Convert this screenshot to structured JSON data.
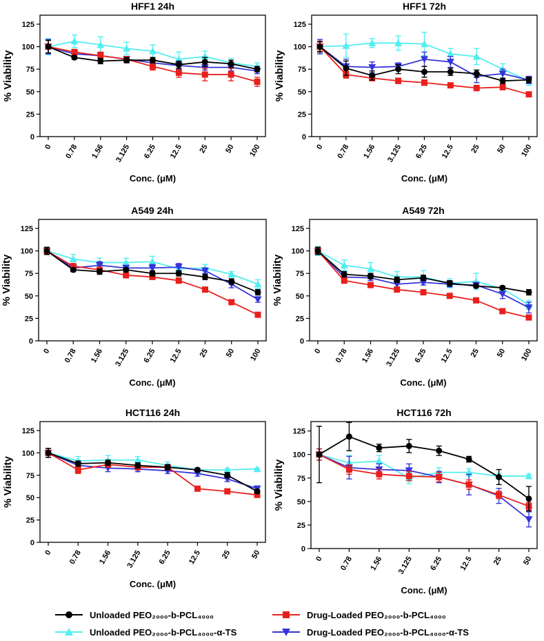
{
  "colors": {
    "unloaded": "#000000",
    "drug_loaded": "#e8201c",
    "unloaded_ts": "#52eef0",
    "drug_loaded_ts": "#3434d8"
  },
  "legend": [
    {
      "key": "unloaded",
      "marker": "circle",
      "label": "Unloaded PEO₂₀₀₀-b-PCL₄₀₀₀"
    },
    {
      "key": "drug_loaded",
      "marker": "square",
      "label": "Drug-Loaded PEO₂₀₀₀-b-PCL₄₀₀₀"
    },
    {
      "key": "unloaded_ts",
      "marker": "triangle-up",
      "label": "Unloaded PEO₂₀₀₀-b-PCL₄₀₀₀-α-TS"
    },
    {
      "key": "drug_loaded_ts",
      "marker": "triangle-down",
      "label": "Drug-Loaded PEO₂₀₀₀-b-PCL₄₀₀₀-α-TS"
    }
  ],
  "chart_data": [
    {
      "type": "line",
      "title": "HFF1 24h",
      "xlabel": "Conc. (μM)",
      "ylabel": "% Viability",
      "ylim": [
        0,
        135
      ],
      "yticks": [
        0,
        25,
        50,
        75,
        100,
        125
      ],
      "categories": [
        "0",
        "0.78",
        "1.56",
        "3.125",
        "6.25",
        "12.5",
        "25",
        "50",
        "100"
      ],
      "series": [
        {
          "name": "Unloaded PEO2000-b-PCL4000",
          "key": "unloaded",
          "values": [
            100,
            88,
            84,
            85,
            85,
            80,
            83,
            81,
            75
          ],
          "errors": [
            7,
            2,
            3,
            3,
            3,
            4,
            5,
            4,
            3
          ]
        },
        {
          "name": "Drug-Loaded PEO2000-b-PCL4000",
          "key": "drug_loaded",
          "values": [
            100,
            94,
            90,
            86,
            78,
            71,
            69,
            69,
            61
          ],
          "errors": [
            7,
            3,
            4,
            3,
            4,
            5,
            7,
            7,
            5
          ]
        },
        {
          "name": "Unloaded PEO2000-b-PCL4000-α-TS",
          "key": "unloaded_ts",
          "values": [
            100,
            106,
            102,
            98,
            95,
            86,
            89,
            82,
            78
          ],
          "errors": [
            9,
            7,
            9,
            7,
            7,
            8,
            6,
            5,
            4
          ]
        },
        {
          "name": "Drug-Loaded PEO2000-b-PCL4000-α-TS",
          "key": "drug_loaded_ts",
          "values": [
            100,
            92,
            90,
            86,
            82,
            79,
            77,
            77,
            73
          ],
          "errors": [
            8,
            3,
            3,
            3,
            4,
            4,
            3,
            4,
            3
          ]
        }
      ]
    },
    {
      "type": "line",
      "title": "HFF1 72h",
      "xlabel": "Conc. (μM)",
      "ylabel": "% Viability",
      "ylim": [
        0,
        135
      ],
      "yticks": [
        0,
        25,
        50,
        75,
        100,
        125
      ],
      "categories": [
        "0",
        "0.78",
        "1.56",
        "3.125",
        "6.25",
        "12.5",
        "25",
        "50",
        "100"
      ],
      "series": [
        {
          "name": "Unloaded PEO2000-b-PCL4000",
          "key": "unloaded",
          "values": [
            100,
            76,
            68,
            75,
            72,
            72,
            70,
            62,
            63
          ],
          "errors": [
            6,
            8,
            5,
            5,
            6,
            4,
            4,
            3,
            3
          ]
        },
        {
          "name": "Drug-Loaded PEO2000-b-PCL4000",
          "key": "drug_loaded",
          "values": [
            100,
            69,
            65,
            62,
            60,
            57,
            54,
            55,
            47
          ],
          "errors": [
            5,
            4,
            3,
            3,
            3,
            2,
            3,
            3,
            2
          ]
        },
        {
          "name": "Unloaded PEO2000-b-PCL4000-α-TS",
          "key": "unloaded_ts",
          "values": [
            100,
            101,
            104,
            104,
            103,
            92,
            89,
            75,
            62
          ],
          "errors": [
            8,
            13,
            5,
            8,
            13,
            6,
            9,
            6,
            5
          ]
        },
        {
          "name": "Drug-Loaded PEO2000-b-PCL4000-α-TS",
          "key": "drug_loaded_ts",
          "values": [
            100,
            78,
            77,
            78,
            86,
            83,
            67,
            70,
            63
          ],
          "errors": [
            8,
            8,
            6,
            4,
            8,
            6,
            7,
            5,
            4
          ]
        }
      ]
    },
    {
      "type": "line",
      "title": "A549 24h",
      "xlabel": "Conc. (μM)",
      "ylabel": "% Viability",
      "ylim": [
        0,
        135
      ],
      "yticks": [
        0,
        25,
        50,
        75,
        100,
        125
      ],
      "categories": [
        "0",
        "0.78",
        "1.56",
        "3.125",
        "6.25",
        "12.5",
        "25",
        "50",
        "100"
      ],
      "series": [
        {
          "name": "Unloaded PEO2000-b-PCL4000",
          "key": "unloaded",
          "values": [
            100,
            79,
            77,
            79,
            75,
            75,
            71,
            66,
            54
          ],
          "errors": [
            4,
            2,
            3,
            2,
            3,
            3,
            3,
            3,
            3
          ]
        },
        {
          "name": "Drug-Loaded PEO2000-b-PCL4000",
          "key": "drug_loaded",
          "values": [
            100,
            83,
            79,
            73,
            71,
            67,
            57,
            43,
            29
          ],
          "errors": [
            4,
            3,
            3,
            3,
            2,
            3,
            2,
            2,
            2
          ]
        },
        {
          "name": "Unloaded PEO2000-b-PCL4000-α-TS",
          "key": "unloaded_ts",
          "values": [
            100,
            91,
            87,
            87,
            88,
            80,
            81,
            74,
            63
          ],
          "errors": [
            4,
            5,
            5,
            5,
            6,
            4,
            4,
            3,
            5
          ]
        },
        {
          "name": "Drug-Loaded PEO2000-b-PCL4000-α-TS",
          "key": "drug_loaded_ts",
          "values": [
            100,
            81,
            84,
            81,
            81,
            82,
            78,
            63,
            46
          ],
          "errors": [
            4,
            4,
            4,
            3,
            4,
            4,
            3,
            4,
            3
          ]
        }
      ]
    },
    {
      "type": "line",
      "title": "A549 72h",
      "xlabel": "Conc. (μM)",
      "ylabel": "% Viability",
      "ylim": [
        0,
        135
      ],
      "yticks": [
        0,
        25,
        50,
        75,
        100,
        125
      ],
      "categories": [
        "0",
        "0.78",
        "1.56",
        "3.125",
        "6.25",
        "12.5",
        "25",
        "50",
        "100"
      ],
      "series": [
        {
          "name": "Unloaded PEO2000-b-PCL4000",
          "key": "unloaded",
          "values": [
            100,
            74,
            72,
            68,
            70,
            64,
            61,
            59,
            54
          ],
          "errors": [
            4,
            3,
            3,
            3,
            3,
            3,
            2,
            2,
            3
          ]
        },
        {
          "name": "Drug-Loaded PEO2000-b-PCL4000",
          "key": "drug_loaded",
          "values": [
            100,
            67,
            62,
            57,
            54,
            50,
            45,
            33,
            26
          ],
          "errors": [
            4,
            3,
            2,
            2,
            2,
            2,
            2,
            2,
            2
          ]
        },
        {
          "name": "Unloaded PEO2000-b-PCL4000-α-TS",
          "key": "unloaded_ts",
          "values": [
            100,
            84,
            80,
            71,
            71,
            64,
            66,
            58,
            40
          ],
          "errors": [
            5,
            6,
            7,
            6,
            7,
            5,
            9,
            3,
            5
          ]
        },
        {
          "name": "Drug-Loaded PEO2000-b-PCL4000-α-TS",
          "key": "drug_loaded_ts",
          "values": [
            100,
            71,
            70,
            63,
            65,
            63,
            62,
            52,
            37
          ],
          "errors": [
            4,
            3,
            3,
            3,
            3,
            3,
            3,
            5,
            6
          ]
        }
      ]
    },
    {
      "type": "line",
      "title": "HCT116 24h",
      "xlabel": "Conc. (μM)",
      "ylabel": "% Viability",
      "ylim": [
        0,
        135
      ],
      "yticks": [
        0,
        25,
        50,
        75,
        100,
        125
      ],
      "categories": [
        "0",
        "0.78",
        "1.56",
        "3.125",
        "6.25",
        "12.5",
        "25",
        "50"
      ],
      "series": [
        {
          "name": "Unloaded PEO2000-b-PCL4000",
          "key": "unloaded",
          "values": [
            100,
            88,
            89,
            86,
            84,
            81,
            75,
            57
          ],
          "errors": [
            5,
            3,
            3,
            3,
            3,
            2,
            3,
            2
          ]
        },
        {
          "name": "Drug-Loaded PEO2000-b-PCL4000",
          "key": "drug_loaded",
          "values": [
            100,
            81,
            87,
            84,
            84,
            60,
            57,
            53
          ],
          "errors": [
            5,
            4,
            3,
            3,
            3,
            1,
            2,
            2
          ]
        },
        {
          "name": "Unloaded PEO2000-b-PCL4000-α-TS",
          "key": "unloaded_ts",
          "values": [
            100,
            91,
            92,
            92,
            86,
            81,
            81,
            82
          ],
          "errors": [
            5,
            5,
            5,
            4,
            4,
            2,
            2,
            1
          ]
        },
        {
          "name": "Drug-Loaded PEO2000-b-PCL4000-α-TS",
          "key": "drug_loaded_ts",
          "values": [
            100,
            86,
            83,
            82,
            80,
            77,
            71,
            60
          ],
          "errors": [
            5,
            4,
            4,
            3,
            3,
            3,
            3,
            3
          ]
        }
      ]
    },
    {
      "type": "line",
      "title": "HCT116 72h",
      "xlabel": "Conc. (μM)",
      "ylabel": "% Viability",
      "ylim": [
        0,
        135
      ],
      "yticks": [
        0,
        25,
        50,
        75,
        100,
        125
      ],
      "categories": [
        "0",
        "0.78",
        "1.56",
        "3.125",
        "6.25",
        "12.5",
        "25",
        "50"
      ],
      "series": [
        {
          "name": "Unloaded PEO2000-b-PCL4000",
          "key": "unloaded",
          "values": [
            100,
            119,
            107,
            109,
            104,
            95,
            76,
            53
          ],
          "errors": [
            30,
            15,
            4,
            7,
            5,
            3,
            8,
            13
          ]
        },
        {
          "name": "Drug-Loaded PEO2000-b-PCL4000",
          "key": "drug_loaded",
          "values": [
            100,
            84,
            79,
            77,
            76,
            68,
            57,
            45
          ],
          "errors": [
            6,
            5,
            5,
            5,
            5,
            5,
            4,
            4
          ]
        },
        {
          "name": "Unloaded PEO2000-b-PCL4000-α-TS",
          "key": "unloaded_ts",
          "values": [
            100,
            91,
            93,
            75,
            81,
            81,
            77,
            77
          ],
          "errors": [
            6,
            8,
            6,
            6,
            5,
            4,
            3,
            2
          ]
        },
        {
          "name": "Drug-Loaded PEO2000-b-PCL4000-α-TS",
          "key": "drug_loaded_ts",
          "values": [
            100,
            86,
            84,
            83,
            76,
            68,
            56,
            31
          ],
          "errors": [
            6,
            12,
            6,
            7,
            6,
            11,
            8,
            8
          ]
        }
      ]
    }
  ]
}
